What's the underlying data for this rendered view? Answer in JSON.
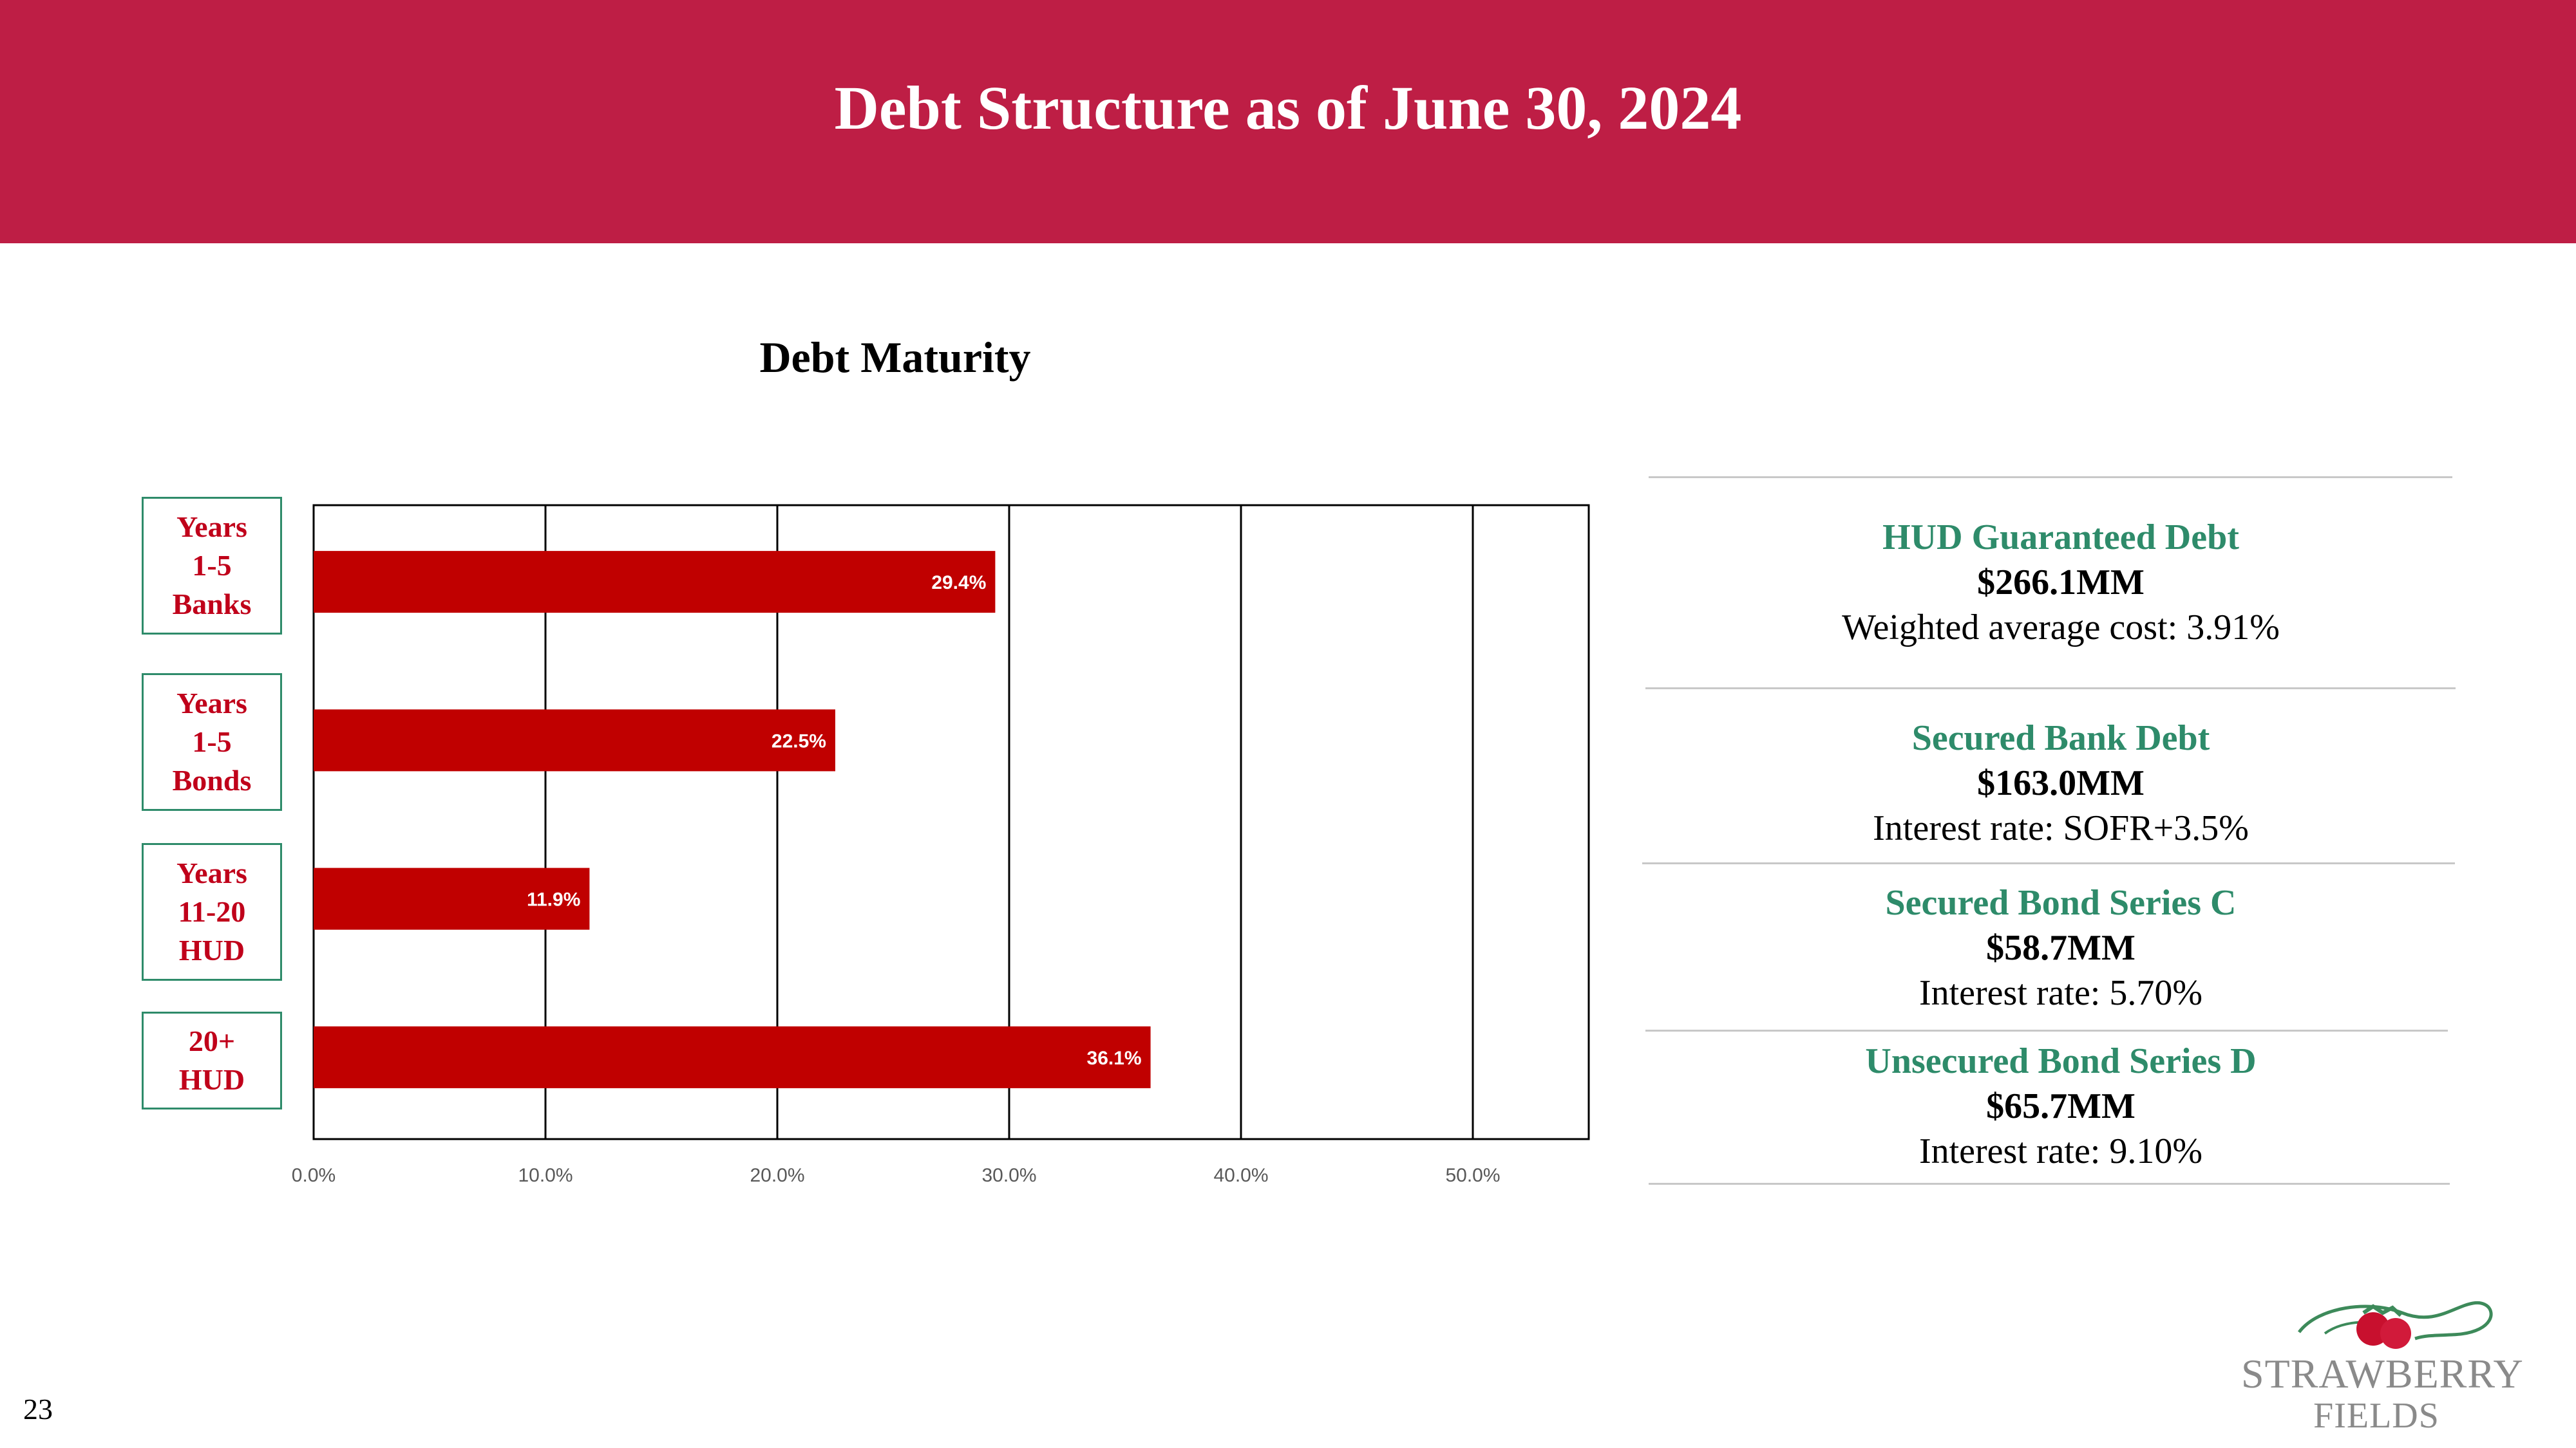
{
  "header": {
    "title": "Debt Structure as of June 30, 2024"
  },
  "chart_data": {
    "type": "bar",
    "orientation": "horizontal",
    "title": "Debt Maturity",
    "categories": [
      "Years\n1-5\nBanks",
      "Years\n1-5\nBonds",
      "Years\n11-20\nHUD",
      "20+\nHUD"
    ],
    "values": [
      29.4,
      22.5,
      11.9,
      36.1
    ],
    "data_labels": [
      "29.4%",
      "22.5%",
      "11.9%",
      "36.1%"
    ],
    "xlim": [
      0,
      55
    ],
    "xticks": [
      0,
      10,
      20,
      30,
      40,
      50
    ],
    "xtick_labels": [
      "0.0%",
      "10.0%",
      "20.0%",
      "30.0%",
      "40.0%",
      "50.0%"
    ],
    "grid": "vertical",
    "bar_color": "#c00000",
    "category_label_color": "#c0001a",
    "category_box_border": "#2e8b6a"
  },
  "debt_summary": [
    {
      "title": "HUD Guaranteed Debt",
      "amount": "$266.1MM",
      "rate": "Weighted average cost: 3.91%"
    },
    {
      "title": "Secured Bank Debt",
      "amount": "$163.0MM",
      "rate": "Interest rate: SOFR+3.5%"
    },
    {
      "title": "Secured Bond Series C",
      "amount": "$58.7MM",
      "rate": "Interest rate: 5.70%"
    },
    {
      "title": "Unsecured Bond Series D",
      "amount": "$65.7MM",
      "rate": "Interest rate: 9.10%"
    }
  ],
  "footer": {
    "page_number": "23",
    "logo_line1": "STRAWBERRY",
    "logo_line2": "FIELDS"
  },
  "colors": {
    "header_bg": "#be1e45",
    "accent_green": "#2e8b6a",
    "bar_red": "#c00000"
  }
}
